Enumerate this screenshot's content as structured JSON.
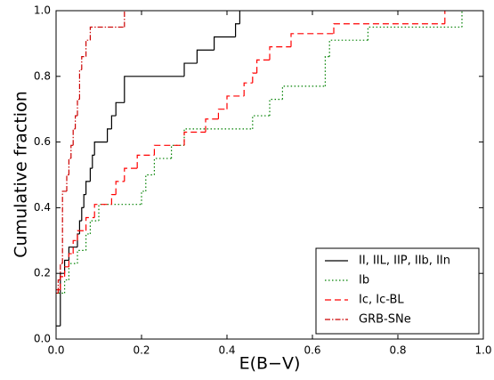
{
  "chart_data": {
    "type": "step",
    "xlabel": "E(B−V)",
    "ylabel": "Cumulative fraction",
    "xlim": [
      0,
      1
    ],
    "ylim": [
      0,
      1
    ],
    "xticks": [
      {
        "value": 0,
        "label": "0.0"
      },
      {
        "value": 0.2,
        "label": "0.2"
      },
      {
        "value": 0.4,
        "label": "0.4"
      },
      {
        "value": 0.6,
        "label": "0.6"
      },
      {
        "value": 0.8,
        "label": "0.8"
      },
      {
        "value": 1,
        "label": "1.0"
      }
    ],
    "yticks": [
      {
        "value": 0,
        "label": "0.0"
      },
      {
        "value": 0.2,
        "label": "0.2"
      },
      {
        "value": 0.4,
        "label": "0.4"
      },
      {
        "value": 0.6,
        "label": "0.6"
      },
      {
        "value": 0.8,
        "label": "0.8"
      },
      {
        "value": 1,
        "label": "1.0"
      }
    ],
    "legend_position": "lower right",
    "series": [
      {
        "name": "II, IIL, IIP, IIb, IIn",
        "color": "#000000",
        "dash": "none",
        "x": [
          0.0,
          0.01,
          0.02,
          0.03,
          0.05,
          0.055,
          0.06,
          0.065,
          0.07,
          0.08,
          0.085,
          0.09,
          0.12,
          0.13,
          0.14,
          0.16,
          0.3,
          0.33,
          0.37,
          0.42,
          0.43
        ],
        "values": [
          0.04,
          0.2,
          0.24,
          0.28,
          0.32,
          0.36,
          0.4,
          0.44,
          0.48,
          0.52,
          0.56,
          0.6,
          0.64,
          0.68,
          0.72,
          0.8,
          0.84,
          0.88,
          0.92,
          0.96,
          1.0
        ]
      },
      {
        "name": "Ib",
        "color": "#008000",
        "dash": "1.5,2.5",
        "x": [
          0.005,
          0.02,
          0.03,
          0.05,
          0.07,
          0.08,
          0.1,
          0.2,
          0.21,
          0.23,
          0.27,
          0.3,
          0.46,
          0.5,
          0.53,
          0.63,
          0.64,
          0.73,
          0.95
        ],
        "values": [
          0.14,
          0.18,
          0.23,
          0.27,
          0.32,
          0.36,
          0.41,
          0.45,
          0.5,
          0.55,
          0.59,
          0.64,
          0.68,
          0.73,
          0.77,
          0.86,
          0.91,
          0.95,
          1.0
        ]
      },
      {
        "name": "Ic, Ic-BL",
        "color": "#ff0000",
        "dash": "7,4",
        "x": [
          0.0,
          0.01,
          0.02,
          0.03,
          0.04,
          0.05,
          0.07,
          0.09,
          0.13,
          0.14,
          0.16,
          0.19,
          0.23,
          0.3,
          0.35,
          0.38,
          0.4,
          0.44,
          0.46,
          0.47,
          0.5,
          0.55,
          0.65,
          0.91
        ],
        "values": [
          0.15,
          0.19,
          0.22,
          0.26,
          0.3,
          0.33,
          0.37,
          0.41,
          0.44,
          0.48,
          0.52,
          0.56,
          0.59,
          0.63,
          0.67,
          0.7,
          0.74,
          0.78,
          0.81,
          0.85,
          0.89,
          0.93,
          0.96,
          1.0
        ]
      },
      {
        "name": "GRB-SNe",
        "color": "#cc0000",
        "dash": "6,2,1.5,2",
        "x": [
          0.0,
          0.005,
          0.01,
          0.015,
          0.025,
          0.03,
          0.035,
          0.04,
          0.045,
          0.05,
          0.055,
          0.06,
          0.07,
          0.08,
          0.16
        ],
        "values": [
          0.14,
          0.18,
          0.23,
          0.45,
          0.5,
          0.55,
          0.59,
          0.64,
          0.68,
          0.73,
          0.82,
          0.86,
          0.91,
          0.95,
          1.0
        ]
      }
    ]
  }
}
